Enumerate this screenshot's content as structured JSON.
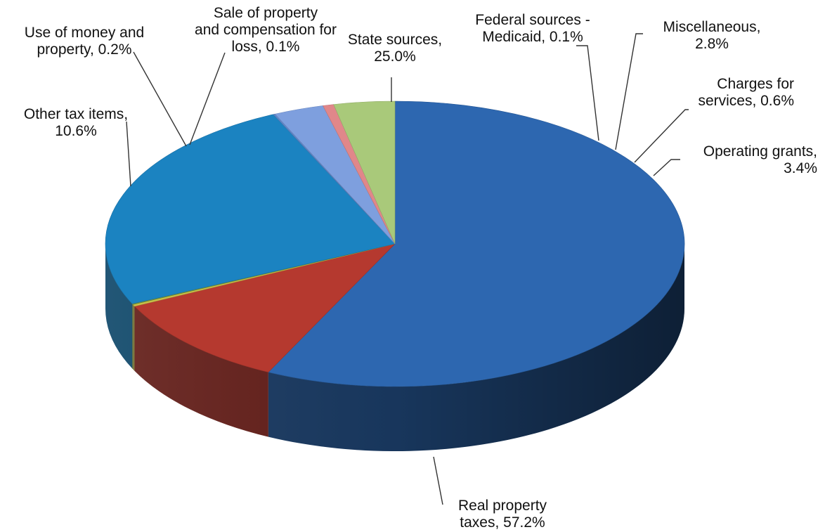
{
  "chart_data": {
    "type": "pie",
    "title": "",
    "slices": [
      {
        "name": "Real property taxes",
        "value": 57.2,
        "label_lines": [
          "Real property",
          "taxes, 57.2%"
        ],
        "color": "#2d67b0"
      },
      {
        "name": "Other tax items",
        "value": 10.6,
        "label_lines": [
          "Other tax items,",
          "10.6%"
        ],
        "color": "#b5392f"
      },
      {
        "name": "Use of money and property",
        "value": 0.2,
        "label_lines": [
          "Use of money and",
          "property, 0.2%"
        ],
        "color": "#c9c24a"
      },
      {
        "name": "Sale of property and compensation for loss",
        "value": 0.1,
        "label_lines": [
          "Sale of property",
          "and compensation for",
          "loss, 0.1%"
        ],
        "color": "#7a9b3a"
      },
      {
        "name": "State sources",
        "value": 25.0,
        "label_lines": [
          "State sources,",
          "25.0%"
        ],
        "color": "#1b83c1"
      },
      {
        "name": "Federal sources - Medicaid",
        "value": 0.1,
        "label_lines": [
          "Federal sources -",
          "Medicaid, 0.1%"
        ],
        "color": "#5f86c9"
      },
      {
        "name": "Miscellaneous",
        "value": 2.8,
        "label_lines": [
          "Miscellaneous,",
          "2.8%"
        ],
        "color": "#7e9fde"
      },
      {
        "name": "Charges for services",
        "value": 0.6,
        "label_lines": [
          "Charges for",
          "services, 0.6%"
        ],
        "color": "#e0878a"
      },
      {
        "name": "Operating grants",
        "value": 3.4,
        "label_lines": [
          "Operating grants,",
          "3.4%"
        ],
        "color": "#a9c97a"
      }
    ]
  }
}
